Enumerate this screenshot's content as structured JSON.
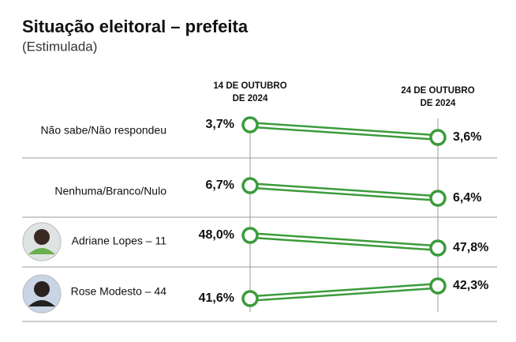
{
  "chart_data": {
    "type": "slope",
    "title": "Situação eleitoral – prefeita",
    "subtitle": "(Estimulada)",
    "categories": [
      "14 DE OUTUBRO DE 2024",
      "24 DE OUTUBRO DE 2024"
    ],
    "series": [
      {
        "name": "Não sabe/Não respondeu",
        "color": "#3c9b3c",
        "values": [
          3.7,
          3.6
        ],
        "value_labels": [
          "3,7%",
          "3,6%"
        ]
      },
      {
        "name": "Nenhuma/Branco/Nulo",
        "color": "#3c9b3c",
        "values": [
          6.7,
          6.4
        ],
        "value_labels": [
          "6,7%",
          "6,4%"
        ]
      },
      {
        "name": "Adriane Lopes – 11",
        "color": "#3c9b3c",
        "values": [
          48.0,
          47.8
        ],
        "value_labels": [
          "48,0%",
          "47,8%"
        ]
      },
      {
        "name": "Rose Modesto – 44",
        "color": "#3c9b3c",
        "values": [
          41.6,
          42.3
        ],
        "value_labels": [
          "41,6%",
          "42,3%"
        ]
      }
    ]
  }
}
